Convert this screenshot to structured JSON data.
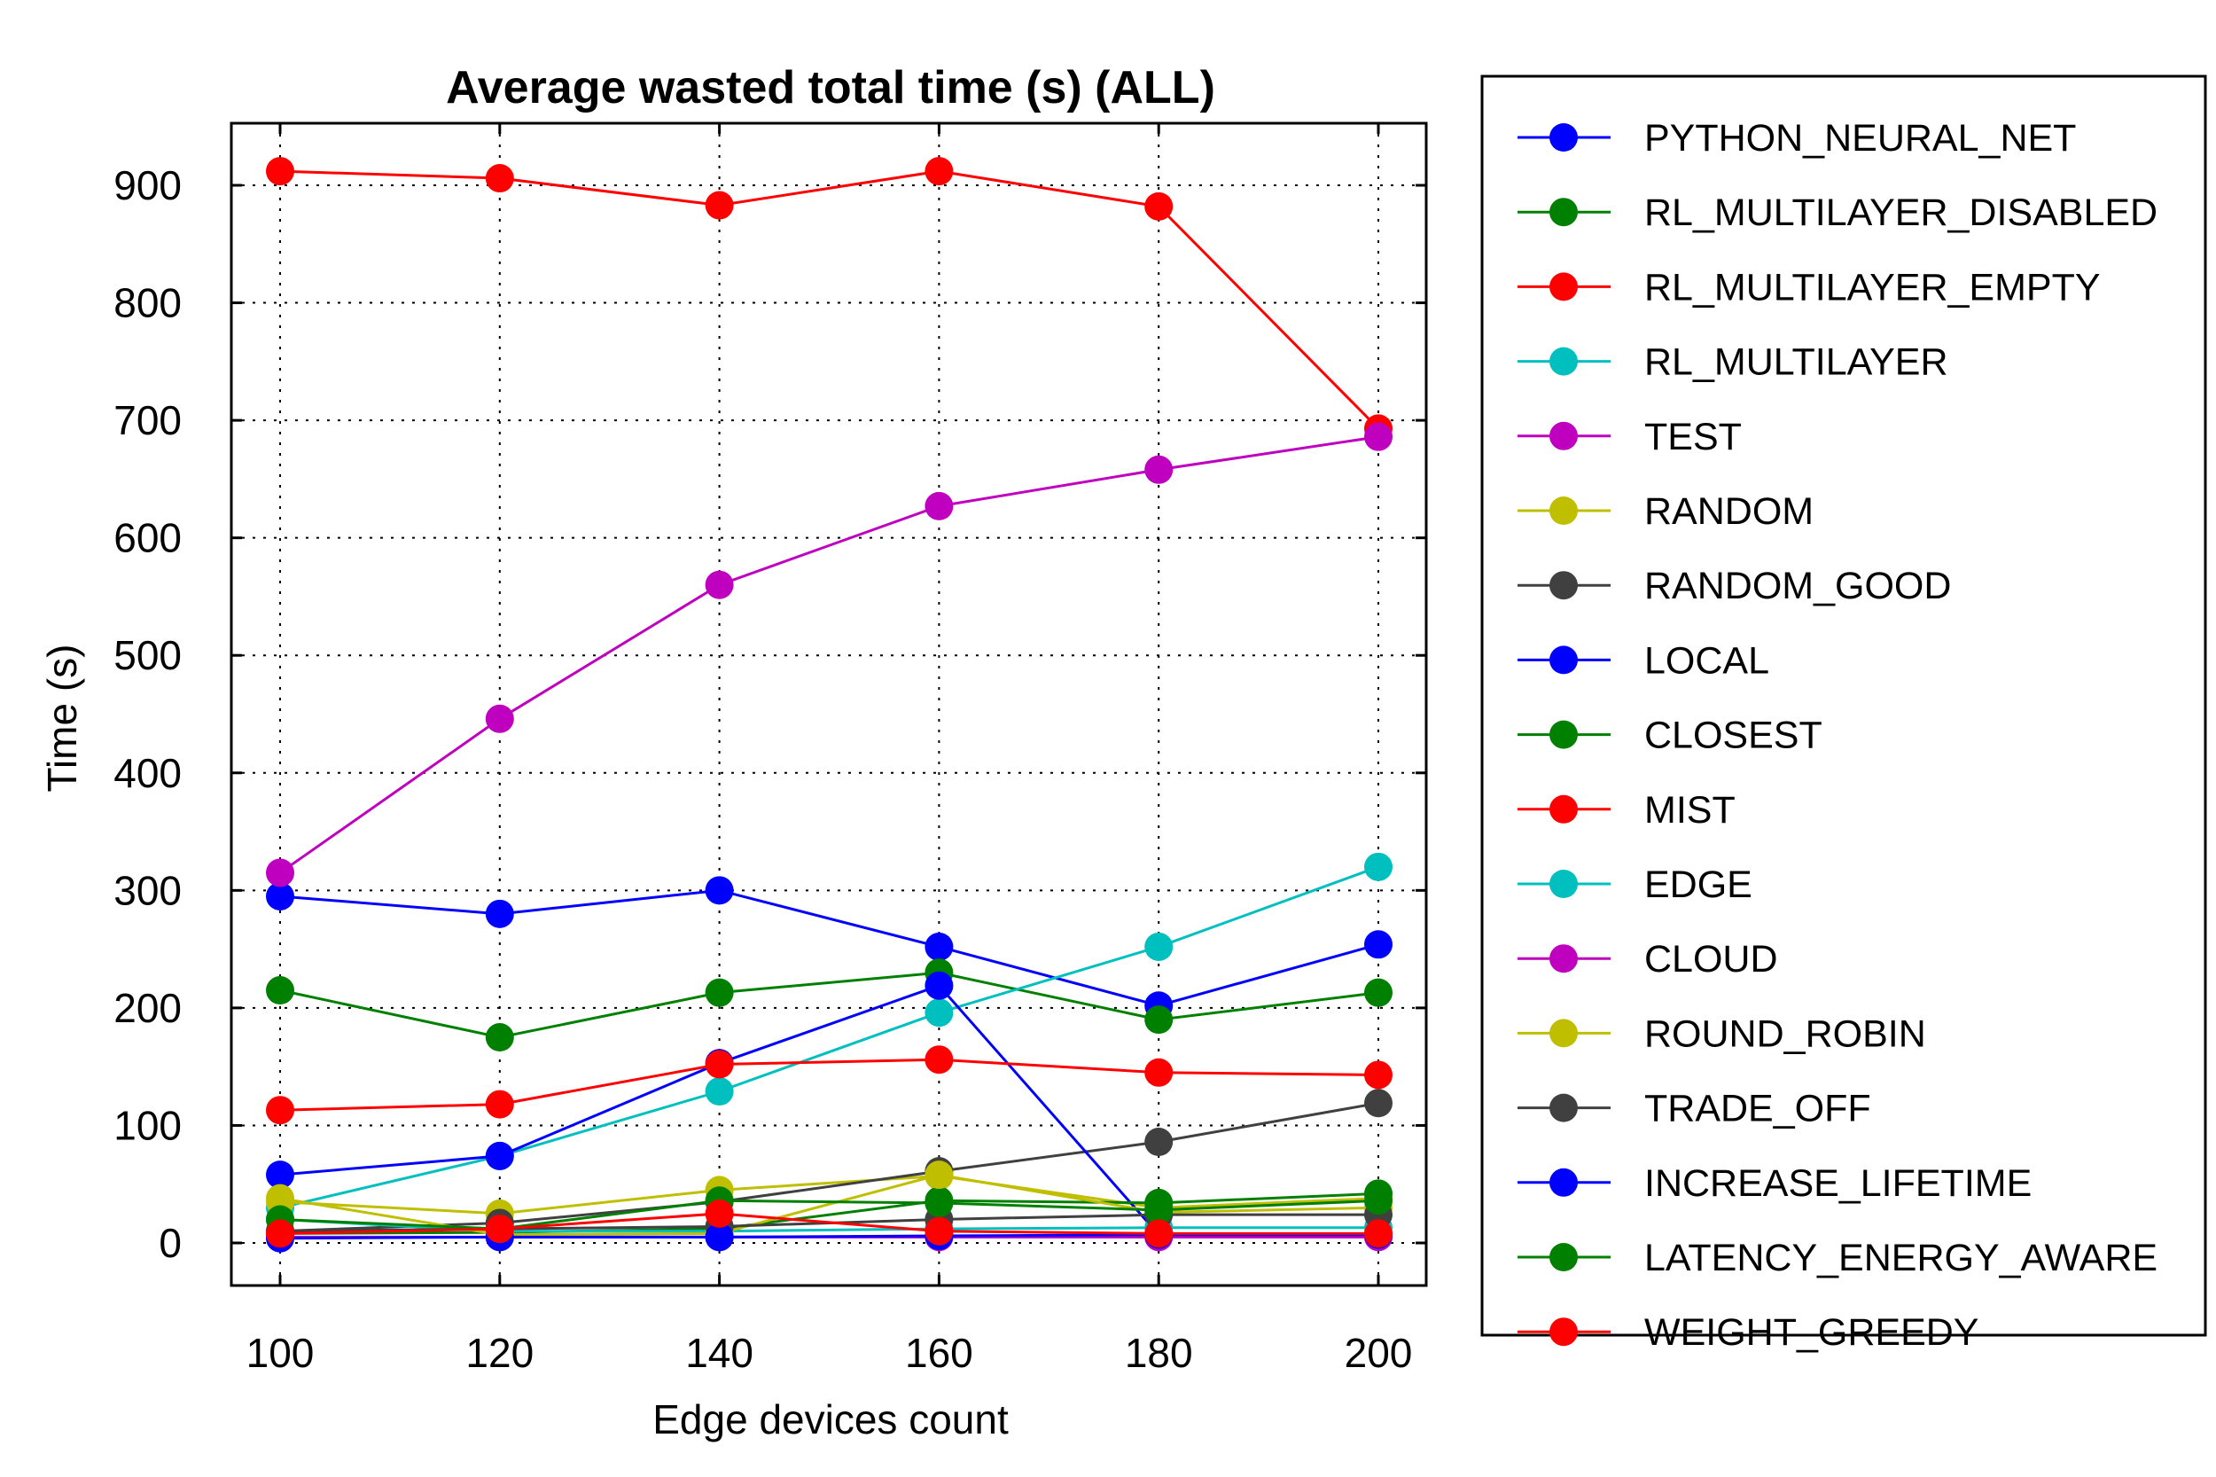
{
  "chart_data": {
    "type": "line",
    "title": "Average wasted total time (s) (ALL)",
    "xlabel": "Edge devices count",
    "ylabel": "Time (s)",
    "x": [
      100,
      120,
      140,
      160,
      180,
      200
    ],
    "xlim": [
      100,
      200
    ],
    "ylim": [
      0,
      900
    ],
    "yticks": [
      0,
      100,
      200,
      300,
      400,
      500,
      600,
      700,
      800,
      900
    ],
    "grid": true,
    "legend_position": "outside-right",
    "series": [
      {
        "name": "PYTHON_NEURAL_NET",
        "color": "#0000ff",
        "values": [
          295,
          280,
          300,
          252,
          202,
          254
        ]
      },
      {
        "name": "RL_MULTILAYER_DISABLED",
        "color": "#008000",
        "values": [
          215,
          175,
          213,
          230,
          190,
          213
        ]
      },
      {
        "name": "RL_MULTILAYER_EMPTY",
        "color": "#ff0000",
        "values": [
          912,
          906,
          883,
          912,
          882,
          693
        ]
      },
      {
        "name": "RL_MULTILAYER",
        "color": "#00bfbf",
        "values": [
          30,
          74,
          129,
          196,
          252,
          320
        ]
      },
      {
        "name": "TEST",
        "color": "#bf00bf",
        "values": [
          315,
          446,
          560,
          627,
          658,
          686
        ]
      },
      {
        "name": "RANDOM",
        "color": "#bfbf00",
        "values": [
          35,
          25,
          45,
          57,
          30,
          38
        ]
      },
      {
        "name": "RANDOM_GOOD",
        "color": "#404040",
        "values": [
          10,
          17,
          35,
          61,
          86,
          119
        ]
      },
      {
        "name": "LOCAL",
        "color": "#0000ff",
        "values": [
          58,
          74,
          153,
          219,
          7,
          7
        ]
      },
      {
        "name": "CLOSEST",
        "color": "#008000",
        "values": [
          8,
          9,
          12,
          36,
          34,
          42
        ]
      },
      {
        "name": "MIST",
        "color": "#ff0000",
        "values": [
          113,
          118,
          152,
          156,
          145,
          143
        ]
      },
      {
        "name": "EDGE",
        "color": "#00bfbf",
        "values": [
          20,
          10,
          10,
          12,
          13,
          13
        ]
      },
      {
        "name": "CLOUD",
        "color": "#bf00bf",
        "values": [
          5,
          5,
          5,
          5,
          5,
          5
        ]
      },
      {
        "name": "ROUND_ROBIN",
        "color": "#bfbf00",
        "values": [
          38,
          7,
          8,
          58,
          26,
          30
        ]
      },
      {
        "name": "TRADE_OFF",
        "color": "#404040",
        "values": [
          10,
          12,
          14,
          20,
          24,
          24
        ]
      },
      {
        "name": "INCREASE_LIFETIME",
        "color": "#0000ff",
        "values": [
          4,
          5,
          5,
          6,
          7,
          7
        ]
      },
      {
        "name": "LATENCY_ENERGY_AWARE",
        "color": "#008000",
        "values": [
          20,
          12,
          36,
          34,
          28,
          36
        ]
      },
      {
        "name": "WEIGHT_GREEDY",
        "color": "#ff0000",
        "values": [
          8,
          12,
          25,
          10,
          8,
          8
        ]
      }
    ]
  }
}
